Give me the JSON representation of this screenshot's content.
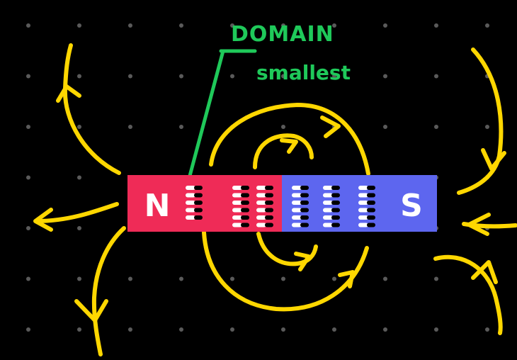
{
  "annotation": {
    "title": "DOMAIN",
    "subtitle": "smallest",
    "color": "#1fc95a"
  },
  "magnet": {
    "north_label": "N",
    "south_label": "S",
    "north_color": "#ef2b57",
    "south_color": "#5d66ef"
  },
  "field_line_color": "#ffd700",
  "dot_color": "#5a5a5a",
  "background": "#000000"
}
